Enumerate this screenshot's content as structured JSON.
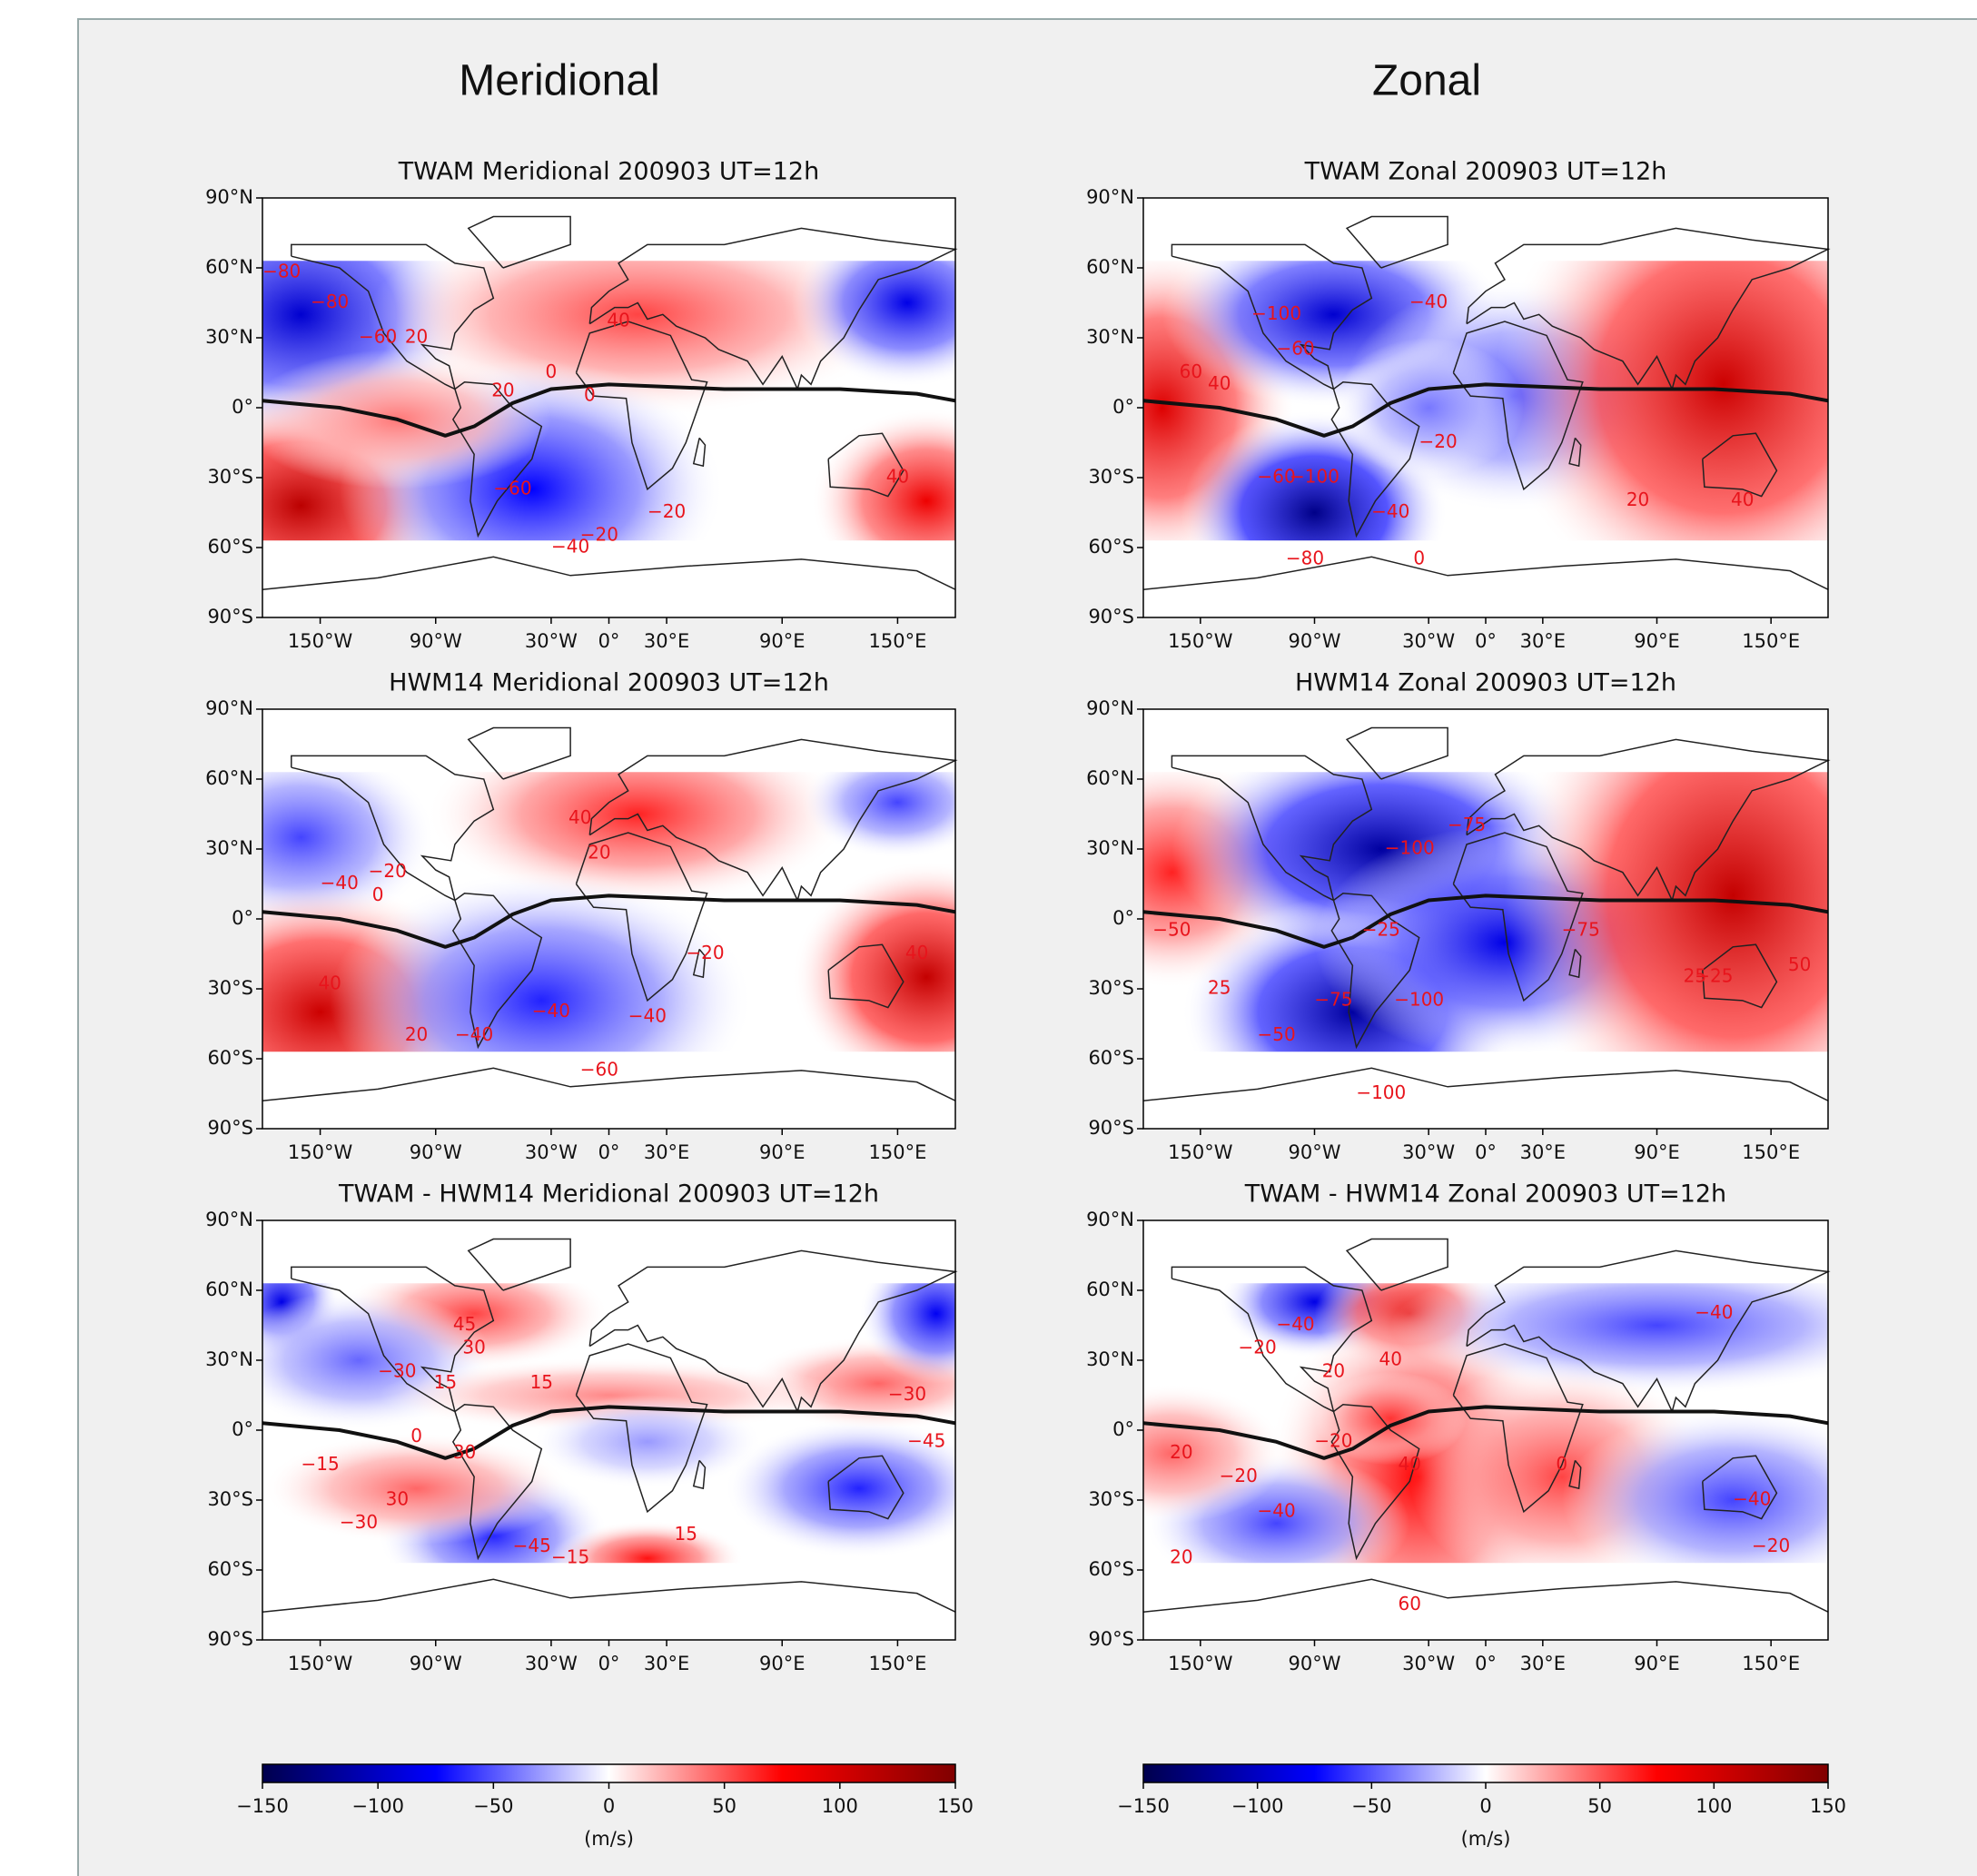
{
  "columns": [
    "Meridional",
    "Zonal"
  ],
  "map_axes": {
    "xlim": [
      -180,
      180
    ],
    "ylim": [
      -90,
      90
    ],
    "xticks": [
      {
        "value": -150,
        "label": "150°W"
      },
      {
        "value": -90,
        "label": "90°W"
      },
      {
        "value": -30,
        "label": "30°W"
      },
      {
        "value": 0,
        "label": "0°"
      },
      {
        "value": 30,
        "label": "30°E"
      },
      {
        "value": 90,
        "label": "90°E"
      },
      {
        "value": 150,
        "label": "150°E"
      }
    ],
    "yticks": [
      {
        "value": 90,
        "label": "90°N"
      },
      {
        "value": 60,
        "label": "60°N"
      },
      {
        "value": 30,
        "label": "30°N"
      },
      {
        "value": 0,
        "label": "0°"
      },
      {
        "value": -30,
        "label": "30°S"
      },
      {
        "value": -60,
        "label": "60°S"
      },
      {
        "value": -90,
        "label": "90°S"
      }
    ]
  },
  "chart_data": [
    {
      "type": "map",
      "title": "TWAM Meridional 200903 UT=12h",
      "contour_labels": [
        "−80",
        "−80",
        "−60",
        "40",
        "0",
        "20",
        "−20",
        "−60",
        "−20",
        "−40",
        "0",
        "40",
        "20"
      ]
    },
    {
      "type": "map",
      "title": "TWAM Zonal 200903 UT=12h",
      "contour_labels": [
        "−100",
        "−60",
        "−40",
        "60",
        "40",
        "−20",
        "−60",
        "−100",
        "−40",
        "−80",
        "0",
        "40",
        "20"
      ]
    },
    {
      "type": "map",
      "title": "HWM14 Meridional 200903 UT=12h",
      "contour_labels": [
        "−40",
        "−20",
        "0",
        "40",
        "20",
        "−20",
        "−40",
        "40",
        "20",
        "−40",
        "−60",
        "−40",
        "40"
      ]
    },
    {
      "type": "map",
      "title": "HWM14 Zonal 200903 UT=12h",
      "contour_labels": [
        "−100",
        "−75",
        "−50",
        "−75",
        "−25",
        "−100",
        "−75",
        "−50",
        "25",
        "−25",
        "−100",
        "25",
        "50"
      ]
    },
    {
      "type": "map",
      "title": "TWAM - HWM14 Meridional 200903 UT=12h",
      "contour_labels": [
        "45",
        "30",
        "−30",
        "15",
        "15",
        "0",
        "−15",
        "30",
        "30",
        "−30",
        "−45",
        "−15",
        "15",
        "−30",
        "−45"
      ]
    },
    {
      "type": "map",
      "title": "TWAM - HWM14 Zonal 200903 UT=12h",
      "contour_labels": [
        "−40",
        "−20",
        "20",
        "40",
        "−40",
        "−20",
        "−20",
        "40",
        "20",
        "−40",
        "−20",
        "−40",
        "0",
        "20",
        "60"
      ]
    }
  ],
  "colorbars": [
    {
      "lim": [
        -150,
        150
      ],
      "ticks": [
        {
          "value": -150,
          "label": "−150"
        },
        {
          "value": -100,
          "label": "−100"
        },
        {
          "value": -50,
          "label": "−50"
        },
        0,
        50,
        100,
        150
      ],
      "label": "(m/s)"
    },
    {
      "lim": [
        -150,
        150
      ],
      "ticks": [
        {
          "value": -150,
          "label": "−150"
        },
        {
          "value": -100,
          "label": "−100"
        },
        {
          "value": -50,
          "label": "−50"
        },
        0,
        50,
        100,
        150
      ],
      "label": "(m/s)"
    }
  ]
}
